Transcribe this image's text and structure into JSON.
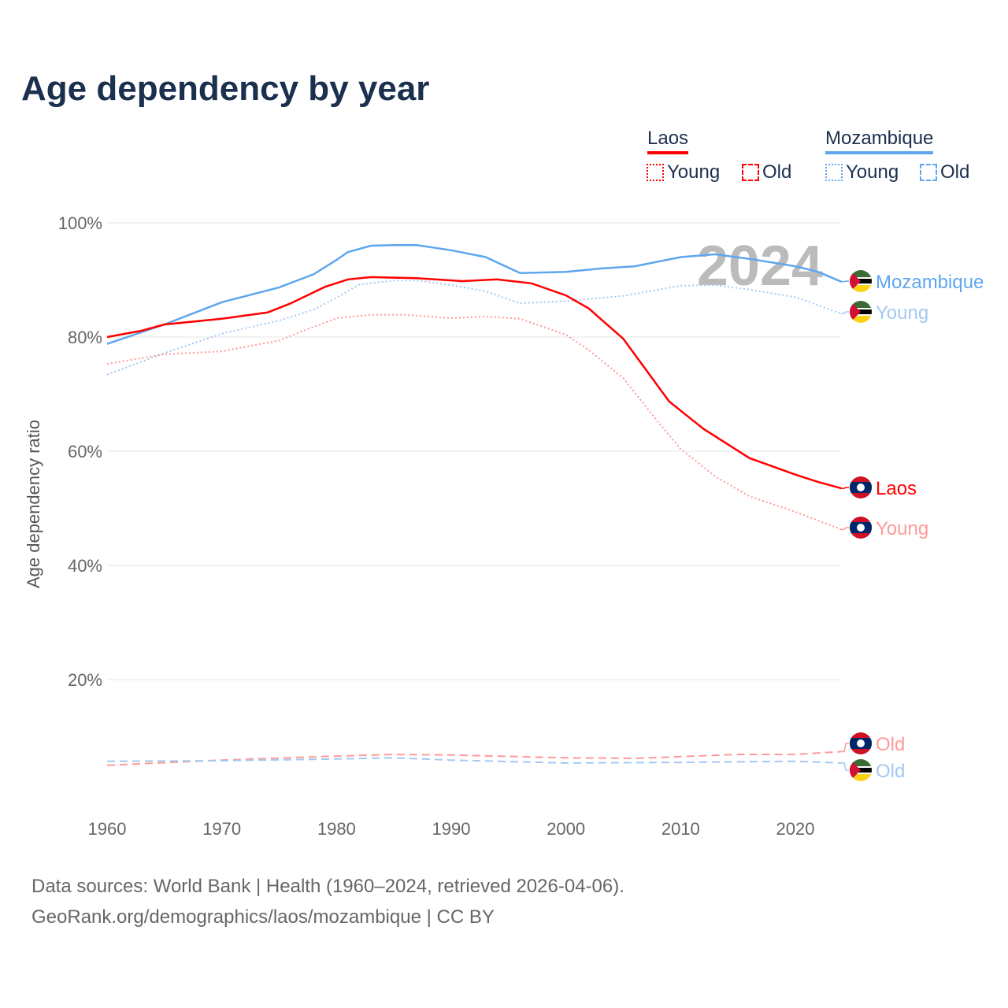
{
  "title": "Age dependency by year",
  "legend": {
    "groups": [
      {
        "name": "Laos",
        "color": "#ff0000",
        "items": [
          "Young",
          "Old"
        ]
      },
      {
        "name": "Mozambique",
        "color": "#5ea6ee",
        "items": [
          "Young",
          "Old"
        ]
      }
    ]
  },
  "footer": {
    "line1": "Data sources: World Bank | Health (1960–2024, retrieved 2026-04-06).",
    "line2": "GeoRank.org/demographics/laos/mozambique | CC BY"
  },
  "chart_data": {
    "type": "line",
    "title": "Age dependency by year",
    "ylabel": "Age dependency ratio",
    "xlabel": "",
    "xlim": [
      1960,
      2024
    ],
    "ylim": [
      0,
      100
    ],
    "yticks": [
      20,
      40,
      60,
      80,
      100
    ],
    "ytick_labels": [
      "20%",
      "40%",
      "60%",
      "80%",
      "100%"
    ],
    "xticks": [
      1960,
      1970,
      1980,
      1990,
      2000,
      2010,
      2020
    ],
    "watermark": "2024",
    "grid": true,
    "series": [
      {
        "name": "Mozambique",
        "label": "Mozambique",
        "color": "#5ea6ee",
        "dash": "solid",
        "flag": "mozambique",
        "x": [
          1960,
          1965,
          1970,
          1975,
          1978,
          1980,
          1981,
          1983,
          1985,
          1987,
          1990,
          1993,
          1996,
          2000,
          2003,
          2006,
          2010,
          2013,
          2016,
          2020,
          2022,
          2024
        ],
        "y": [
          78.8,
          82.2,
          86.1,
          88.7,
          91,
          93.5,
          94.9,
          96,
          96.1,
          96.1,
          95.2,
          94,
          91.2,
          91.4,
          92,
          92.4,
          94,
          94.5,
          93.7,
          92.4,
          91.4,
          89.7
        ]
      },
      {
        "name": "Mozambique Young",
        "label": "Young",
        "color": "#a3c9f2",
        "dash": "dotted",
        "flag": "mozambique",
        "x": [
          1960,
          1965,
          1970,
          1975,
          1978,
          1980,
          1982,
          1985,
          1987,
          1990,
          1993,
          1996,
          2000,
          2005,
          2010,
          2013,
          2016,
          2020,
          2024
        ],
        "y": [
          73.4,
          77.2,
          80.6,
          82.9,
          84.8,
          86.9,
          89.2,
          89.9,
          89.9,
          89.1,
          88,
          85.9,
          86.3,
          87.2,
          89,
          89.1,
          88.3,
          87,
          84.1
        ]
      },
      {
        "name": "Laos",
        "label": "Laos",
        "color": "#ff0000",
        "dash": "solid",
        "flag": "laos",
        "x": [
          1960,
          1963,
          1965,
          1970,
          1974,
          1976,
          1979,
          1981,
          1983,
          1987,
          1991,
          1994,
          1997,
          2000,
          2002,
          2005,
          2007,
          2009,
          2012,
          2016,
          2020,
          2022,
          2024
        ],
        "y": [
          80,
          81.1,
          82.2,
          83.2,
          84.3,
          85.9,
          88.8,
          90.1,
          90.5,
          90.3,
          89.8,
          90.1,
          89.4,
          87.3,
          85,
          79.7,
          74.2,
          68.7,
          63.9,
          58.8,
          55.9,
          54.6,
          53.5
        ]
      },
      {
        "name": "Laos Young",
        "label": "Young",
        "color": "#ff9a9a",
        "dash": "dotted",
        "flag": "laos",
        "x": [
          1960,
          1965,
          1970,
          1975,
          1978,
          1980,
          1983,
          1986,
          1990,
          1993,
          1996,
          2000,
          2002,
          2005,
          2008,
          2010,
          2013,
          2016,
          2020,
          2024
        ],
        "y": [
          75.3,
          77,
          77.5,
          79.4,
          81.8,
          83.3,
          83.9,
          83.9,
          83.3,
          83.6,
          83.2,
          80.4,
          77.7,
          72.8,
          65.2,
          60.4,
          55.6,
          52.1,
          49.4,
          46.3
        ]
      },
      {
        "name": "Laos Old",
        "label": "Old",
        "color": "#ff9a9a",
        "dash": "dashed",
        "flag": "laos",
        "x": [
          1960,
          1970,
          1980,
          1985,
          1990,
          2000,
          2006,
          2015,
          2020,
          2024
        ],
        "y": [
          5,
          5.9,
          6.6,
          6.9,
          6.8,
          6.3,
          6.2,
          6.9,
          6.9,
          7.4
        ]
      },
      {
        "name": "Mozambique Old",
        "label": "Old",
        "color": "#a3c9f2",
        "dash": "dashed",
        "flag": "mozambique",
        "x": [
          1960,
          1970,
          1980,
          1985,
          1990,
          2000,
          2010,
          2020,
          2024
        ],
        "y": [
          5.7,
          5.8,
          6.1,
          6.3,
          5.9,
          5.4,
          5.5,
          5.7,
          5.4
        ]
      }
    ]
  }
}
